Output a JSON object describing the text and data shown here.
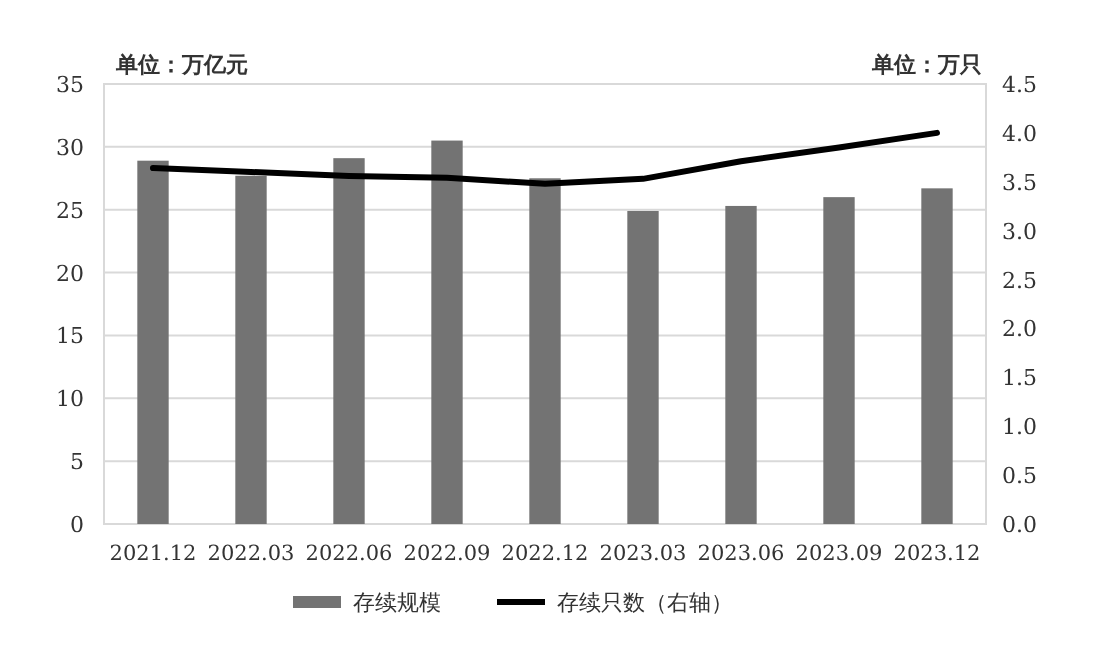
{
  "chart_data": {
    "type": "bar",
    "ylabel": "单位：万亿元",
    "y2label": "单位：万只",
    "categories": [
      "2021.12",
      "2022.03",
      "2022.06",
      "2022.09",
      "2022.12",
      "2023.03",
      "2023.06",
      "2023.09",
      "2023.12"
    ],
    "series": [
      {
        "name": "存续规模",
        "type": "bar",
        "color": "#737373",
        "values": [
          28.9,
          27.7,
          29.1,
          30.5,
          27.5,
          24.9,
          25.3,
          26.0,
          26.7
        ]
      },
      {
        "name": "存续只数（右轴）",
        "type": "line",
        "axis": "y2",
        "color": "#000000",
        "values": [
          3.64,
          3.6,
          3.56,
          3.54,
          3.48,
          3.53,
          3.71,
          3.85,
          4.0
        ]
      }
    ],
    "ylim": [
      0,
      35
    ],
    "yticks": [
      0,
      5,
      10,
      15,
      20,
      25,
      30,
      35
    ],
    "y2lim": [
      0,
      4.5
    ],
    "y2ticks": [
      {
        "value": 0,
        "label": "0.0"
      },
      {
        "value": 0.5,
        "label": "0.5"
      },
      {
        "value": 1,
        "label": "1.0"
      },
      {
        "value": 1.5,
        "label": "1.5"
      },
      {
        "value": 2,
        "label": "2.0"
      },
      {
        "value": 2.5,
        "label": "2.5"
      },
      {
        "value": 3,
        "label": "3.0"
      },
      {
        "value": 3.5,
        "label": "3.5"
      },
      {
        "value": 4,
        "label": "4.0"
      },
      {
        "value": 4.5,
        "label": "4.5"
      }
    ],
    "grid": "y",
    "legend": "bottom",
    "marker": "none",
    "line_style": "solid"
  }
}
